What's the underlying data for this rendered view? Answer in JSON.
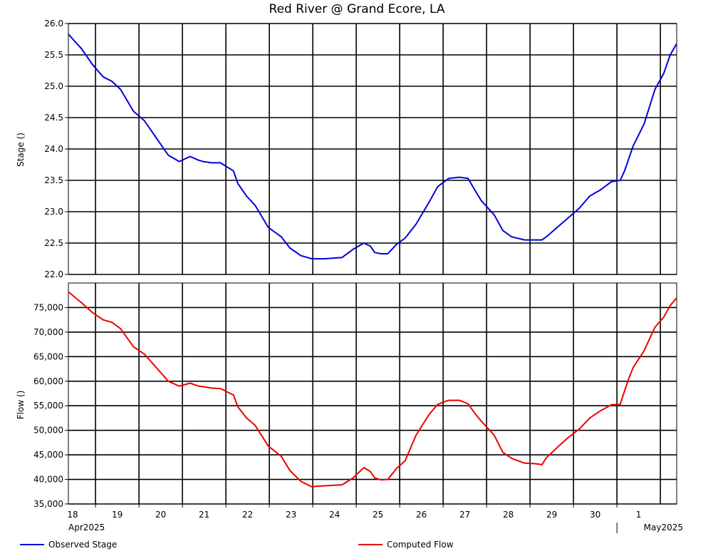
{
  "chart_data": [
    {
      "type": "line",
      "title": "Red River @ Grand Ecore, LA",
      "ylabel": "Stage ()",
      "ylim": [
        22.0,
        26.0
      ],
      "yticks": [
        "22.0",
        "22.5",
        "23.0",
        "23.5",
        "24.0",
        "24.5",
        "25.0",
        "25.5",
        "26.0"
      ],
      "xlim_days": [
        18.0,
        32.0
      ],
      "grid": true,
      "series": [
        {
          "name": "Observed Stage",
          "color": "#0000dd",
          "x": [
            18.0,
            18.3,
            18.55,
            18.8,
            19.0,
            19.2,
            19.5,
            19.75,
            20.0,
            20.3,
            20.55,
            20.8,
            21.0,
            21.1,
            21.3,
            21.5,
            21.8,
            21.9,
            22.1,
            22.3,
            22.6,
            22.9,
            23.1,
            23.35,
            23.6,
            23.7,
            23.9,
            24.3,
            24.55,
            24.8,
            24.95,
            25.05,
            25.2,
            25.35,
            25.55,
            25.75,
            26.0,
            26.3,
            26.5,
            26.75,
            27.0,
            27.2,
            27.35,
            27.5,
            27.8,
            28.0,
            28.2,
            28.5,
            28.75,
            28.9,
            29.0,
            29.25,
            29.5,
            29.75,
            30.0,
            30.25,
            30.5,
            30.7,
            30.8,
            30.9,
            31.0,
            31.25,
            31.5,
            31.7,
            31.85,
            32.0
          ],
          "values": [
            25.83,
            25.6,
            25.35,
            25.15,
            25.08,
            24.95,
            24.6,
            24.45,
            24.2,
            23.9,
            23.8,
            23.88,
            23.82,
            23.8,
            23.78,
            23.78,
            23.65,
            23.45,
            23.25,
            23.1,
            22.75,
            22.6,
            22.42,
            22.3,
            22.25,
            22.25,
            22.25,
            22.27,
            22.4,
            22.5,
            22.45,
            22.35,
            22.33,
            22.33,
            22.48,
            22.58,
            22.8,
            23.15,
            23.4,
            23.53,
            23.55,
            23.53,
            23.35,
            23.18,
            22.95,
            22.7,
            22.6,
            22.55,
            22.55,
            22.55,
            22.6,
            22.75,
            22.9,
            23.05,
            23.25,
            23.35,
            23.48,
            23.5,
            23.65,
            23.85,
            24.05,
            24.4,
            24.95,
            25.2,
            25.5,
            25.68
          ]
        }
      ]
    },
    {
      "type": "line",
      "ylabel": "Flow ()",
      "ylim": [
        35000,
        80000
      ],
      "yticks": [
        "35,000",
        "40,000",
        "45,000",
        "50,000",
        "55,000",
        "60,000",
        "65,000",
        "70,000",
        "75,000"
      ],
      "xlim_days": [
        18.0,
        32.0
      ],
      "grid": true,
      "series": [
        {
          "name": "Computed Flow",
          "color": "#ee0000",
          "x": [
            18.0,
            18.3,
            18.55,
            18.8,
            19.0,
            19.2,
            19.5,
            19.75,
            20.0,
            20.3,
            20.55,
            20.8,
            21.0,
            21.1,
            21.3,
            21.5,
            21.8,
            21.9,
            22.1,
            22.3,
            22.6,
            22.9,
            23.1,
            23.35,
            23.6,
            23.7,
            23.9,
            24.3,
            24.55,
            24.8,
            24.95,
            25.05,
            25.2,
            25.35,
            25.55,
            25.75,
            26.0,
            26.3,
            26.5,
            26.75,
            27.0,
            27.2,
            27.35,
            27.5,
            27.8,
            28.0,
            28.2,
            28.5,
            28.75,
            28.9,
            29.0,
            29.25,
            29.5,
            29.75,
            30.0,
            30.25,
            30.5,
            30.7,
            30.8,
            30.9,
            31.0,
            31.25,
            31.5,
            31.7,
            31.85,
            32.0
          ],
          "values": [
            78200,
            76000,
            74000,
            72500,
            72000,
            70700,
            67000,
            65500,
            63000,
            60000,
            59000,
            59600,
            59000,
            58900,
            58600,
            58500,
            57200,
            54800,
            52500,
            51000,
            46800,
            44700,
            41800,
            39600,
            38500,
            38600,
            38700,
            38900,
            40300,
            42400,
            41600,
            40300,
            39900,
            40000,
            42200,
            43800,
            49000,
            53200,
            55300,
            56100,
            56100,
            55400,
            53500,
            51900,
            49000,
            45500,
            44300,
            43300,
            43200,
            43000,
            44400,
            46500,
            48500,
            50200,
            52500,
            54000,
            55200,
            55300,
            58000,
            60600,
            62800,
            66200,
            71000,
            73000,
            75400,
            77000
          ]
        }
      ]
    }
  ],
  "x_axis": {
    "day_labels": [
      "18",
      "19",
      "20",
      "21",
      "22",
      "23",
      "24",
      "25",
      "26",
      "27",
      "28",
      "29",
      "30",
      "1"
    ],
    "month_labels": [
      "Apr2025",
      "May2025"
    ]
  },
  "legend": [
    "Observed Stage",
    "Computed Flow"
  ]
}
